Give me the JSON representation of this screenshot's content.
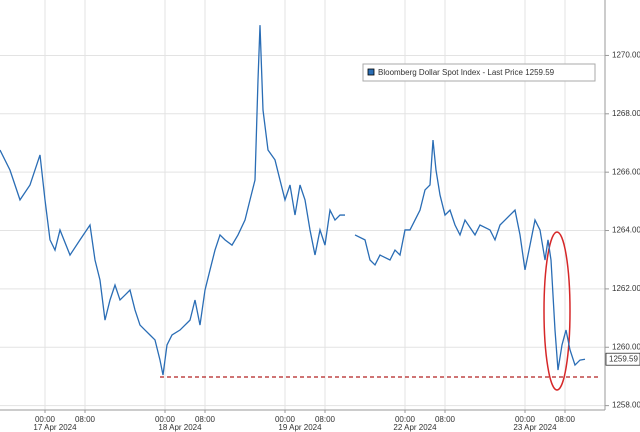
{
  "chart_data": {
    "type": "line",
    "x": [
      -9,
      -7,
      -5,
      -3,
      -1,
      0,
      1,
      2,
      3,
      5,
      7,
      9,
      10,
      11,
      12,
      13,
      14,
      15,
      16,
      17,
      18,
      19,
      20,
      21,
      22,
      23,
      23.6,
      24.4,
      25.4,
      27,
      29,
      30,
      31,
      32,
      33,
      34,
      35,
      36,
      37.4,
      38.6,
      40,
      41,
      42,
      42.6,
      43,
      43.6,
      44.6,
      46,
      47,
      48,
      49,
      50,
      51,
      52,
      53,
      54,
      55,
      56,
      57,
      58,
      59,
      60,
      61,
      62,
      64,
      65,
      66,
      67,
      69,
      70,
      71,
      72,
      73,
      74,
      75,
      76,
      77,
      77.6,
      78.2,
      79,
      80,
      81,
      82,
      83,
      84,
      86,
      87,
      89,
      90,
      91,
      92,
      93,
      94,
      95,
      96,
      97,
      98,
      99,
      100,
      100.6,
      101.2,
      102,
      102.6,
      103.4,
      104.2,
      105,
      106,
      107,
      108
    ],
    "series": [
      {
        "name": "Bloomberg Dollar Spot Index - Last Price",
        "color": "#2a6db5",
        "values": [
          1266.76,
          1266.07,
          1265.05,
          1265.56,
          1266.59,
          1265.05,
          1263.68,
          1263.33,
          1264.02,
          1263.16,
          1263.68,
          1264.19,
          1262.99,
          1262.3,
          1260.93,
          1261.62,
          1262.13,
          1261.62,
          1261.79,
          1261.96,
          1261.28,
          1260.76,
          1260.59,
          1260.42,
          1260.25,
          1259.56,
          1259.05,
          1260.08,
          1260.42,
          1260.59,
          1260.93,
          1261.62,
          1260.76,
          1261.96,
          1262.65,
          1263.33,
          1263.85,
          1263.68,
          1263.5,
          1263.85,
          1264.36,
          1265.05,
          1265.73,
          1269.16,
          1271.04,
          1268.13,
          1266.76,
          1266.42,
          1265.73,
          1265.05,
          1265.56,
          1264.53,
          1265.56,
          1265.05,
          1264.02,
          1263.16,
          1264.02,
          1263.5,
          1264.7,
          1264.36,
          1264.53,
          1264.53,
          null,
          1263.85,
          1263.68,
          1262.99,
          1262.82,
          1263.16,
          1262.99,
          1263.33,
          1263.16,
          1264.02,
          1264.02,
          1264.36,
          1264.7,
          1265.39,
          1265.56,
          1267.1,
          1266.07,
          1265.22,
          1264.53,
          1264.7,
          1264.19,
          1263.85,
          1264.36,
          1263.85,
          1264.19,
          1264.02,
          1263.68,
          1264.19,
          1264.36,
          1264.53,
          1264.7,
          1263.85,
          1262.65,
          1263.5,
          1264.36,
          1264.02,
          1262.99,
          1263.68,
          1262.99,
          1260.59,
          1259.22,
          1260.08,
          1260.59,
          1259.91,
          1259.39,
          1259.56,
          1259.59
        ]
      }
    ],
    "last_value": 1259.59,
    "reference_line": {
      "value": 1258.98,
      "from_x": 23,
      "color": "#b22222"
    },
    "xlim": [
      -9,
      112
    ],
    "xticks": [
      {
        "value": 0,
        "label": "00:00"
      },
      {
        "value": 8,
        "label": "08:00"
      },
      {
        "value": 24,
        "label": "00:00"
      },
      {
        "value": 32,
        "label": "08:00"
      },
      {
        "value": 48,
        "label": "00:00"
      },
      {
        "value": 56,
        "label": "08:00"
      },
      {
        "value": 72,
        "label": "00:00"
      },
      {
        "value": 80,
        "label": "08:00"
      },
      {
        "value": 96,
        "label": "00:00"
      },
      {
        "value": 104,
        "label": "08:00"
      }
    ],
    "date_labels": [
      {
        "value": 2,
        "label": "17 Apr 2024"
      },
      {
        "value": 27,
        "label": "18 Apr 2024"
      },
      {
        "value": 51,
        "label": "19 Apr 2024"
      },
      {
        "value": 74,
        "label": "22 Apr 2024"
      },
      {
        "value": 98,
        "label": "23 Apr 2024"
      }
    ],
    "ylim": [
      1257.85,
      1271.9
    ],
    "yticks": [
      {
        "value": 1258,
        "label": "1258.00"
      },
      {
        "value": 1260,
        "label": "1260.00"
      },
      {
        "value": 1262,
        "label": "1262.00"
      },
      {
        "value": 1264,
        "label": "1264.00"
      },
      {
        "value": 1266,
        "label": "1266.00"
      },
      {
        "value": 1268,
        "label": "1268.00"
      },
      {
        "value": 1270,
        "label": "1270.00"
      }
    ],
    "grid": true
  }
}
